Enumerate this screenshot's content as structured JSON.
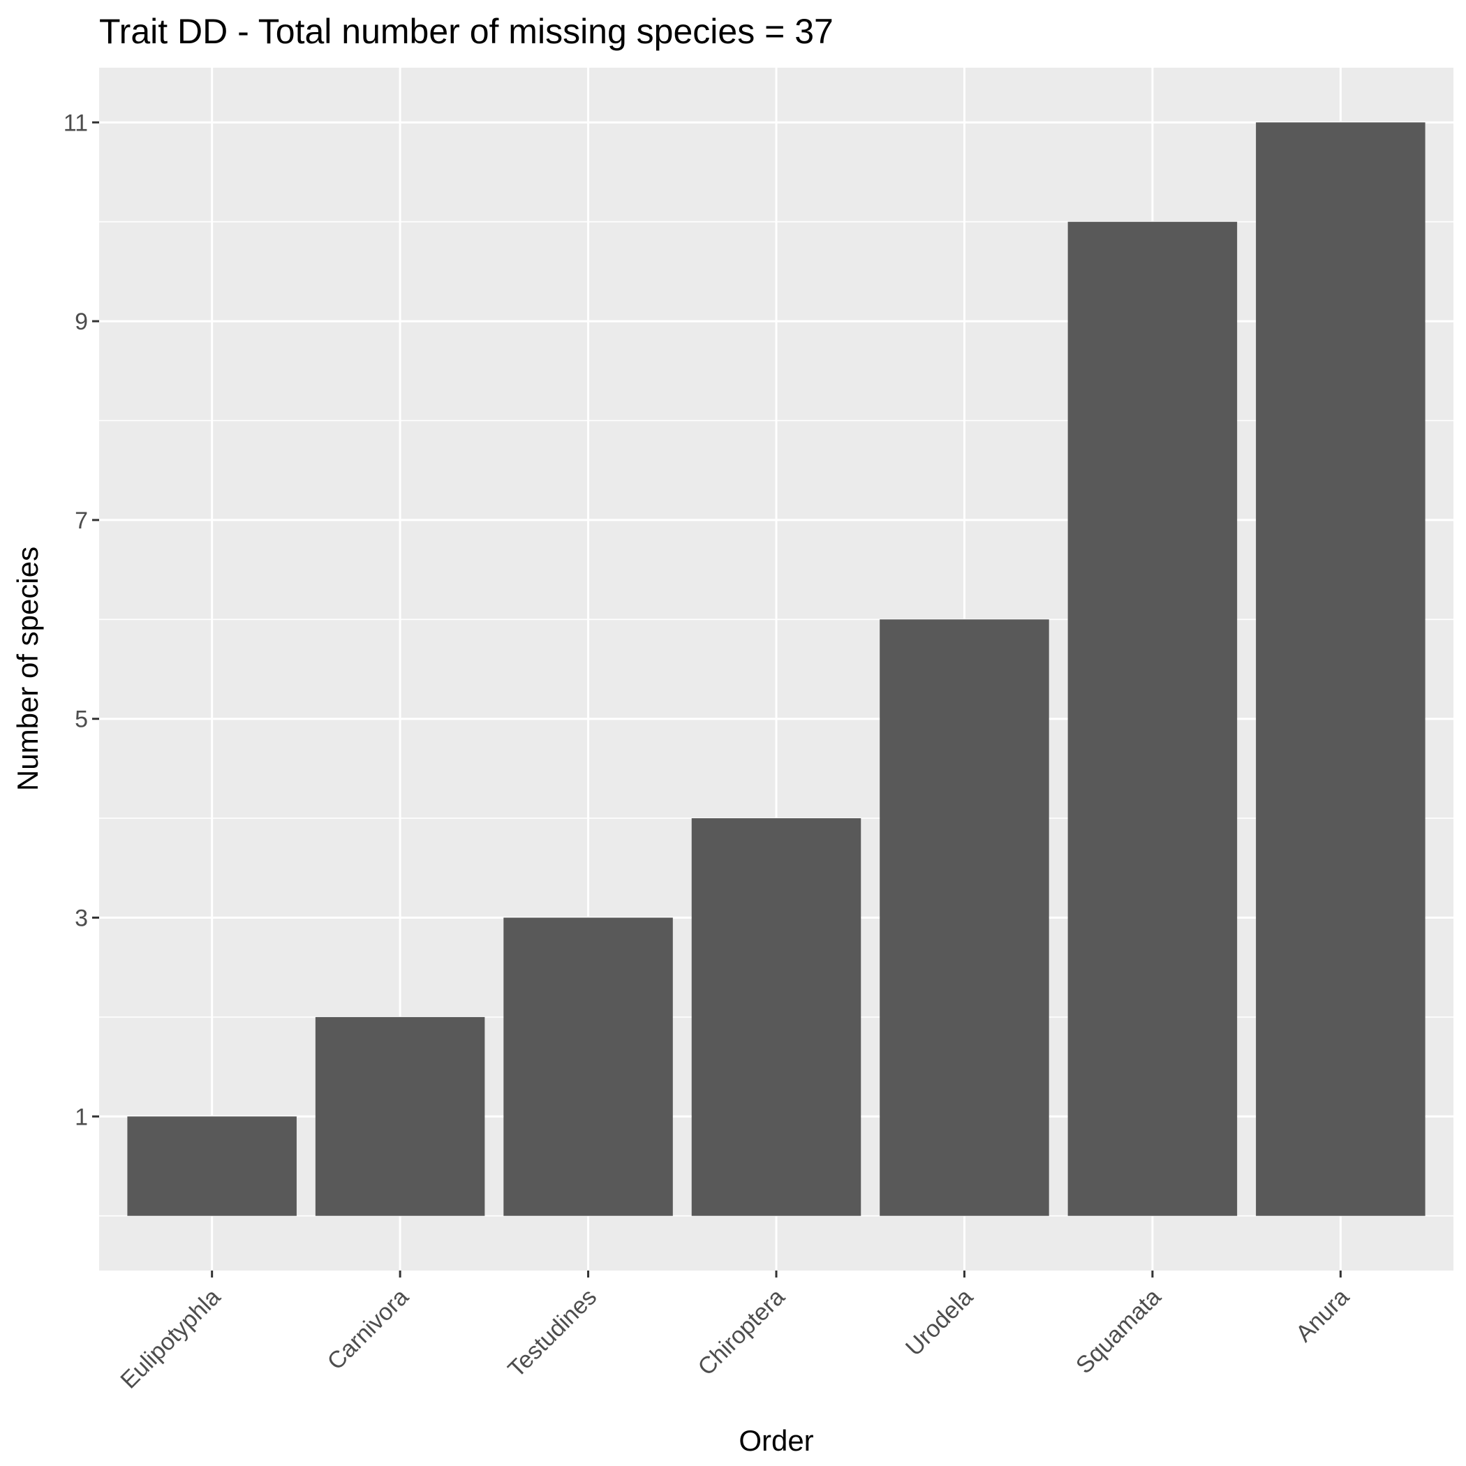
{
  "chart_data": {
    "type": "bar",
    "title": "Trait DD - Total number of missing species = 37",
    "xlabel": "Order",
    "ylabel": "Number of species",
    "categories": [
      "Eulipotyphla",
      "Carnivora",
      "Testudines",
      "Chiroptera",
      "Urodela",
      "Squamata",
      "Anura"
    ],
    "values": [
      1,
      2,
      3,
      4,
      6,
      10,
      11
    ],
    "yticks": [
      1,
      3,
      5,
      7,
      9,
      11
    ],
    "ylim": [
      -0.55,
      11.55
    ],
    "grid": true,
    "legend": "none",
    "colors": {
      "panel": "#ebebeb",
      "bar": "#595959",
      "grid": "#ffffff",
      "tick": "#333333"
    }
  }
}
